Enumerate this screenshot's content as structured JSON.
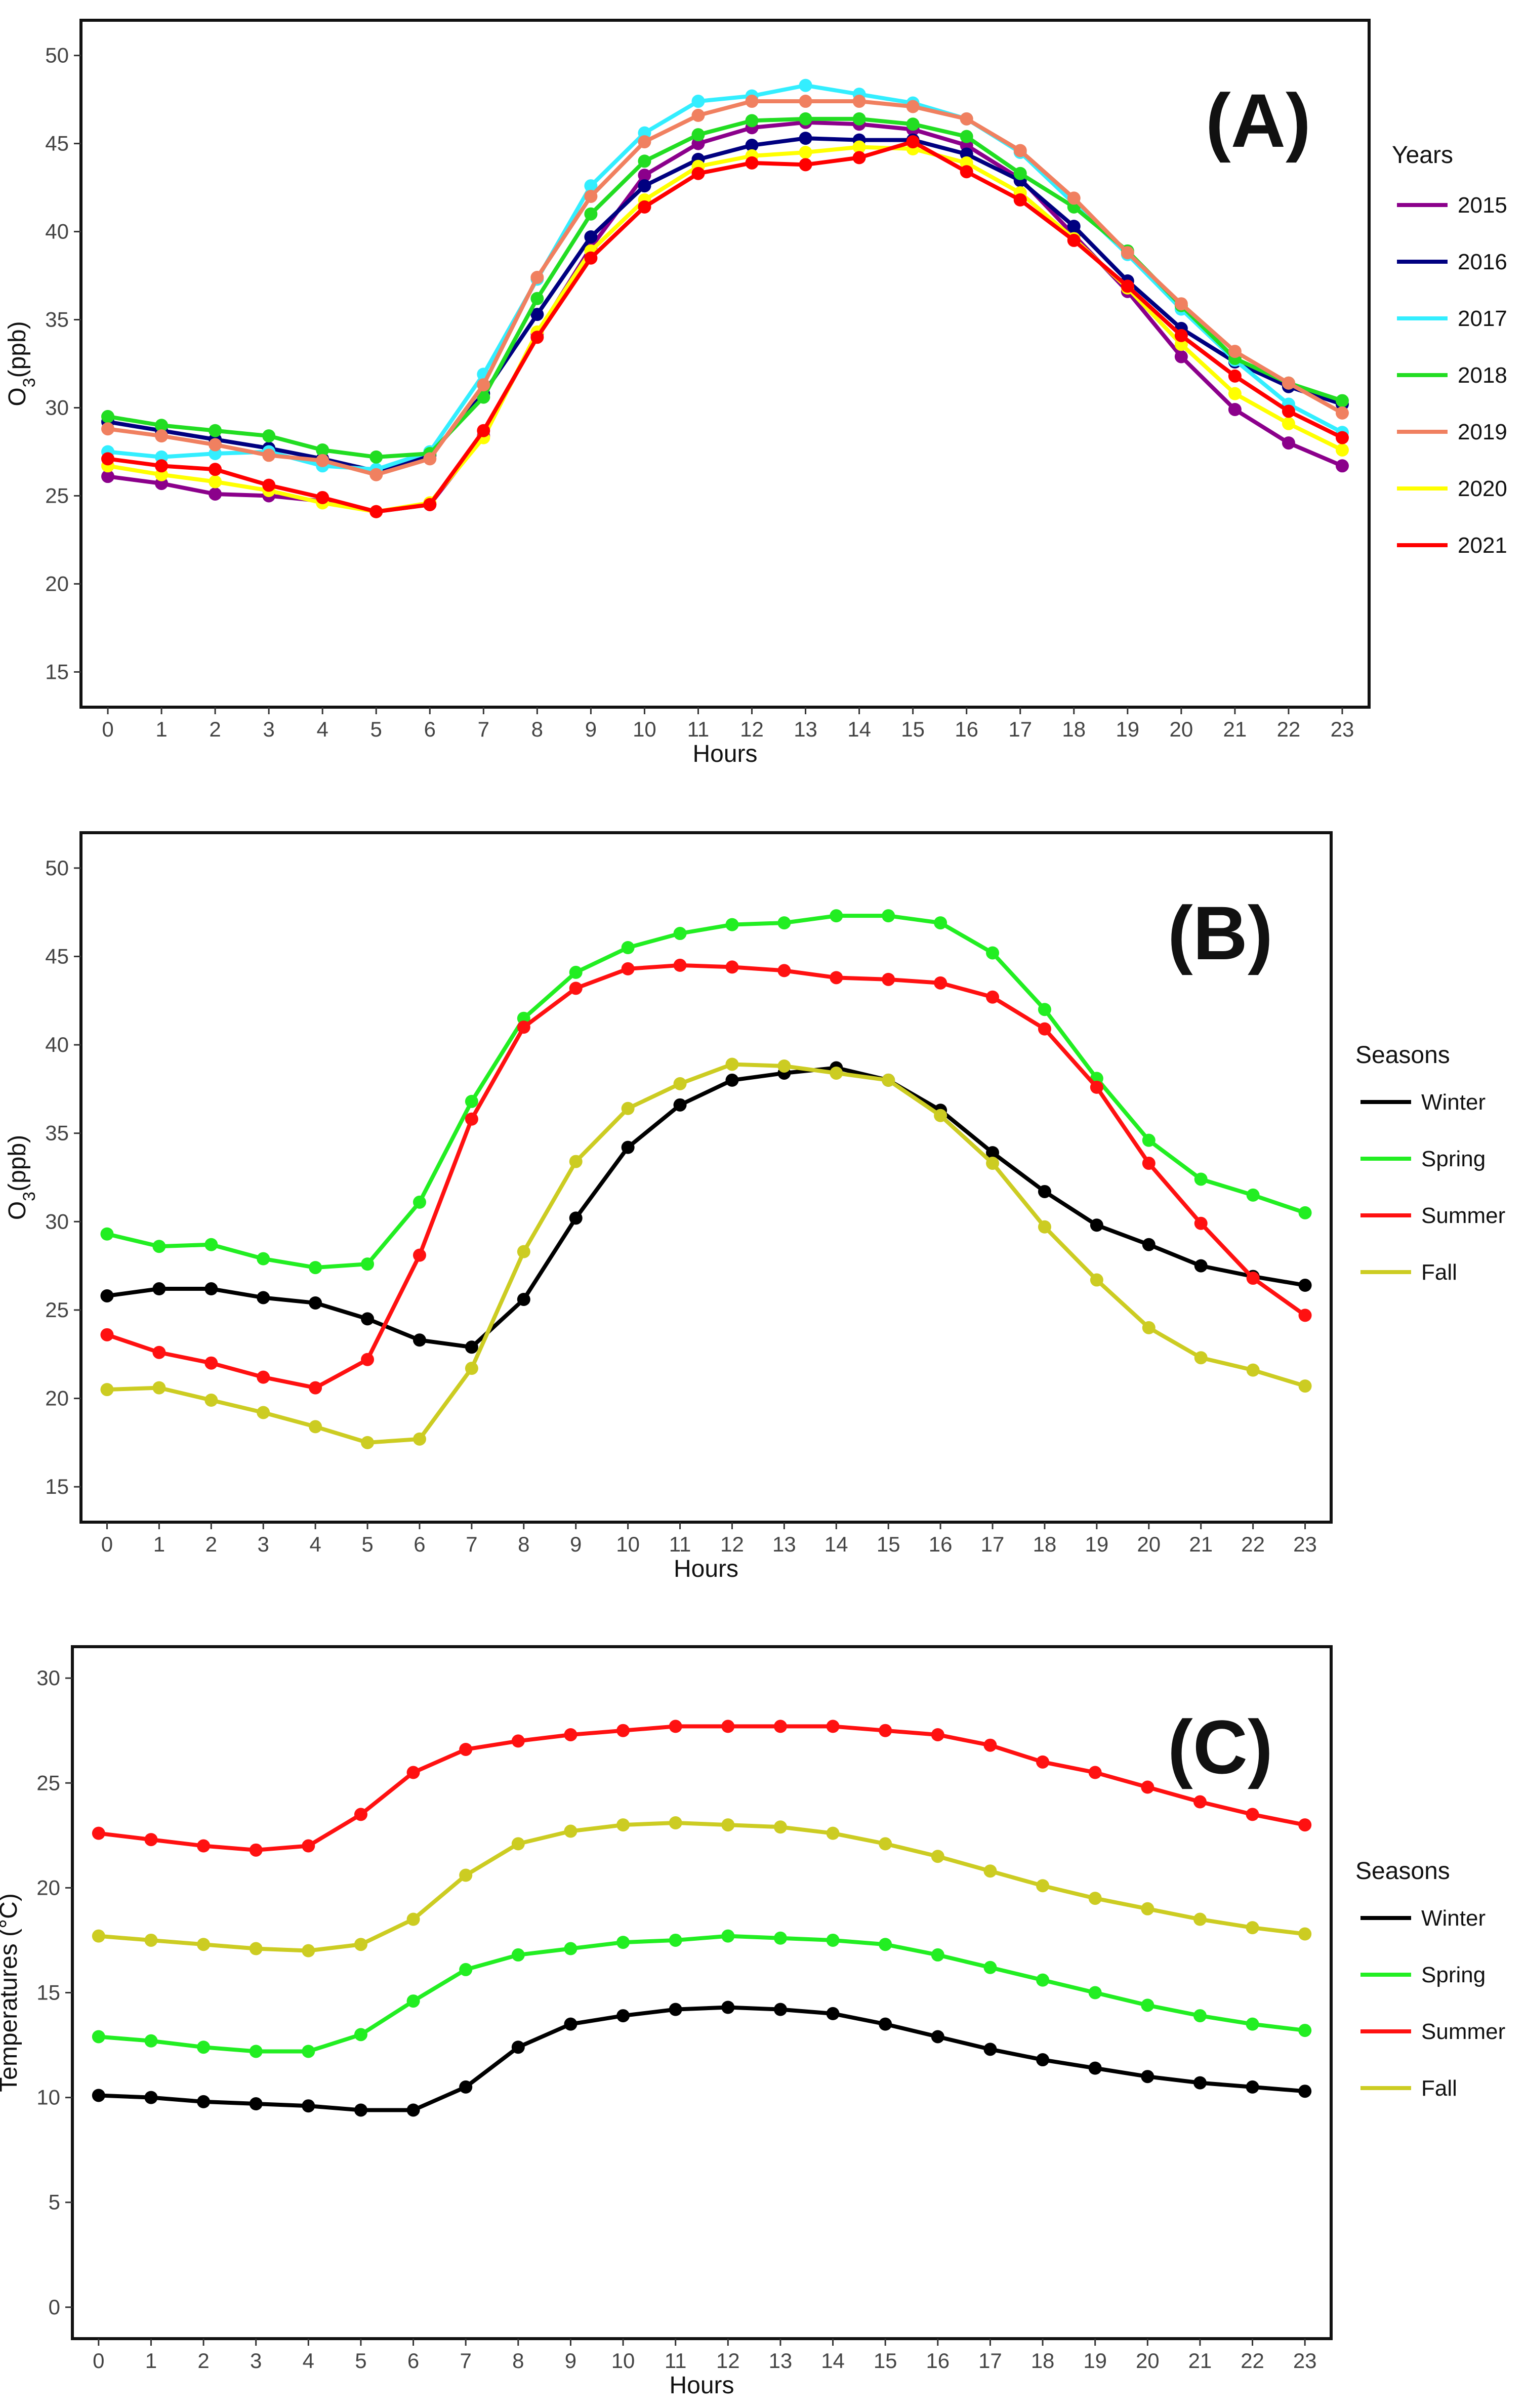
{
  "chart_data": [
    {
      "type": "line",
      "panel_label": "(A)",
      "xlabel": "Hours",
      "ylabel_main": "O",
      "ylabel_sub": "3",
      "ylabel_tail": "(ppb)",
      "xlim": [
        -0.5,
        23.5
      ],
      "ylim": [
        13,
        52
      ],
      "yticks": [
        15,
        20,
        25,
        30,
        35,
        40,
        45,
        50
      ],
      "x": [
        0,
        1,
        2,
        3,
        4,
        5,
        6,
        7,
        8,
        9,
        10,
        11,
        12,
        13,
        14,
        15,
        16,
        17,
        18,
        19,
        20,
        21,
        22,
        23
      ],
      "x_tick_labels": [
        "0",
        "1",
        "2",
        "3",
        "4",
        "5",
        "6",
        "7",
        "8",
        "9",
        "10",
        "11",
        "12",
        "13",
        "14",
        "15",
        "16",
        "17",
        "18",
        "19",
        "20",
        "21",
        "22",
        "23"
      ],
      "legend_title": "Years",
      "legend_position": "right",
      "series": [
        {
          "name": "2015",
          "color": "#8B008B",
          "values": [
            26.1,
            25.7,
            25.1,
            25.0,
            24.7,
            24.1,
            24.5,
            28.4,
            34.2,
            39.1,
            43.2,
            45.0,
            45.9,
            46.2,
            46.1,
            45.8,
            44.9,
            43.0,
            39.8,
            36.6,
            32.9,
            29.9,
            28.0,
            26.7
          ]
        },
        {
          "name": "2016",
          "color": "#000080",
          "values": [
            29.2,
            28.7,
            28.2,
            27.7,
            27.1,
            26.4,
            27.3,
            30.8,
            35.3,
            39.7,
            42.6,
            44.1,
            44.9,
            45.3,
            45.2,
            45.2,
            44.4,
            42.9,
            40.3,
            37.2,
            34.5,
            32.6,
            31.2,
            30.2
          ]
        },
        {
          "name": "2017",
          "color": "#33EEFF",
          "values": [
            27.5,
            27.2,
            27.4,
            27.5,
            26.7,
            26.5,
            27.5,
            31.9,
            37.3,
            42.6,
            45.6,
            47.4,
            47.7,
            48.3,
            47.8,
            47.3,
            46.4,
            44.5,
            41.6,
            38.7,
            35.6,
            32.7,
            30.2,
            28.6
          ]
        },
        {
          "name": "2018",
          "color": "#22DD22",
          "values": [
            29.5,
            29.0,
            28.7,
            28.4,
            27.6,
            27.2,
            27.4,
            30.6,
            36.2,
            41.0,
            44.0,
            45.5,
            46.3,
            46.4,
            46.4,
            46.1,
            45.4,
            43.3,
            41.4,
            38.9,
            35.8,
            32.8,
            31.4,
            30.4
          ]
        },
        {
          "name": "2019",
          "color": "#F08060",
          "values": [
            28.8,
            28.4,
            27.9,
            27.3,
            27.0,
            26.2,
            27.1,
            31.3,
            37.4,
            42.0,
            45.1,
            46.6,
            47.4,
            47.4,
            47.4,
            47.1,
            46.4,
            44.6,
            41.9,
            38.8,
            35.9,
            33.2,
            31.4,
            29.7
          ]
        },
        {
          "name": "2020",
          "color": "#FFFF00",
          "values": [
            26.7,
            26.2,
            25.8,
            25.3,
            24.6,
            24.1,
            24.6,
            28.3,
            34.3,
            38.9,
            41.8,
            43.7,
            44.3,
            44.5,
            44.8,
            44.7,
            43.9,
            42.2,
            39.6,
            36.8,
            33.6,
            30.8,
            29.1,
            27.6
          ]
        },
        {
          "name": "2021",
          "color": "#FF0000",
          "values": [
            27.1,
            26.7,
            26.5,
            25.6,
            24.9,
            24.1,
            24.5,
            28.7,
            34.0,
            38.5,
            41.4,
            43.3,
            43.9,
            43.8,
            44.2,
            45.1,
            43.4,
            41.8,
            39.5,
            36.9,
            34.1,
            31.8,
            29.8,
            28.3
          ]
        }
      ]
    },
    {
      "type": "line",
      "panel_label": "(B)",
      "xlabel": "Hours",
      "ylabel_main": "O",
      "ylabel_sub": "3",
      "ylabel_tail": "(ppb)",
      "xlim": [
        -0.5,
        23.5
      ],
      "ylim": [
        13,
        52
      ],
      "yticks": [
        15,
        20,
        25,
        30,
        35,
        40,
        45,
        50
      ],
      "x": [
        0,
        1,
        2,
        3,
        4,
        5,
        6,
        7,
        8,
        9,
        10,
        11,
        12,
        13,
        14,
        15,
        16,
        17,
        18,
        19,
        20,
        21,
        22,
        23
      ],
      "x_tick_labels": [
        "0",
        "1",
        "2",
        "3",
        "4",
        "5",
        "6",
        "7",
        "8",
        "9",
        "10",
        "11",
        "12",
        "13",
        "14",
        "15",
        "16",
        "17",
        "18",
        "19",
        "20",
        "21",
        "22",
        "23"
      ],
      "legend_title": "Seasons",
      "legend_position": "right",
      "series": [
        {
          "name": "Winter",
          "color": "#000000",
          "values": [
            25.8,
            26.2,
            26.2,
            25.7,
            25.4,
            24.5,
            23.3,
            22.9,
            25.6,
            30.2,
            34.2,
            36.6,
            38.0,
            38.4,
            38.7,
            38.0,
            36.3,
            33.9,
            31.7,
            29.8,
            28.7,
            27.5,
            26.9,
            26.4
          ]
        },
        {
          "name": "Spring",
          "color": "#22EE22",
          "values": [
            29.3,
            28.6,
            28.7,
            27.9,
            27.4,
            27.6,
            31.1,
            36.8,
            41.5,
            44.1,
            45.5,
            46.3,
            46.8,
            46.9,
            47.3,
            47.3,
            46.9,
            45.2,
            42.0,
            38.1,
            34.6,
            32.4,
            31.5,
            30.5
          ]
        },
        {
          "name": "Summer",
          "color": "#FF1111",
          "values": [
            23.6,
            22.6,
            22.0,
            21.2,
            20.6,
            22.2,
            28.1,
            35.8,
            41.0,
            43.2,
            44.3,
            44.5,
            44.4,
            44.2,
            43.8,
            43.7,
            43.5,
            42.7,
            40.9,
            37.6,
            33.3,
            29.9,
            26.8,
            24.7
          ]
        },
        {
          "name": "Fall",
          "color": "#CCCC22",
          "values": [
            20.5,
            20.6,
            19.9,
            19.2,
            18.4,
            17.5,
            17.7,
            21.7,
            28.3,
            33.4,
            36.4,
            37.8,
            38.9,
            38.8,
            38.4,
            38.0,
            36.0,
            33.3,
            29.7,
            26.7,
            24.0,
            22.3,
            21.6,
            20.7
          ]
        }
      ]
    },
    {
      "type": "line",
      "panel_label": "(C)",
      "xlabel": "Hours",
      "ylabel_main": "Temperatures (°C)",
      "ylabel_sub": "",
      "ylabel_tail": "",
      "xlim": [
        -0.5,
        23.5
      ],
      "ylim": [
        -1.5,
        31.5
      ],
      "yticks": [
        0,
        5,
        10,
        15,
        20,
        25,
        30
      ],
      "x": [
        0,
        1,
        2,
        3,
        4,
        5,
        6,
        7,
        8,
        9,
        10,
        11,
        12,
        13,
        14,
        15,
        16,
        17,
        18,
        19,
        20,
        21,
        22,
        23
      ],
      "x_tick_labels": [
        "0",
        "1",
        "2",
        "3",
        "4",
        "5",
        "6",
        "7",
        "8",
        "9",
        "10",
        "11",
        "12",
        "13",
        "14",
        "15",
        "16",
        "17",
        "18",
        "19",
        "20",
        "21",
        "22",
        "23"
      ],
      "legend_title": "Seasons",
      "legend_position": "right",
      "series": [
        {
          "name": "Winter",
          "color": "#000000",
          "values": [
            10.1,
            10.0,
            9.8,
            9.7,
            9.6,
            9.4,
            9.4,
            10.5,
            12.4,
            13.5,
            13.9,
            14.2,
            14.3,
            14.2,
            14.0,
            13.5,
            12.9,
            12.3,
            11.8,
            11.4,
            11.0,
            10.7,
            10.5,
            10.3
          ]
        },
        {
          "name": "Spring",
          "color": "#22EE22",
          "values": [
            12.9,
            12.7,
            12.4,
            12.2,
            12.2,
            13.0,
            14.6,
            16.1,
            16.8,
            17.1,
            17.4,
            17.5,
            17.7,
            17.6,
            17.5,
            17.3,
            16.8,
            16.2,
            15.6,
            15.0,
            14.4,
            13.9,
            13.5,
            13.2
          ]
        },
        {
          "name": "Summer",
          "color": "#FF1111",
          "values": [
            22.6,
            22.3,
            22.0,
            21.8,
            22.0,
            23.5,
            25.5,
            26.6,
            27.0,
            27.3,
            27.5,
            27.7,
            27.7,
            27.7,
            27.7,
            27.5,
            27.3,
            26.8,
            26.0,
            25.5,
            24.8,
            24.1,
            23.5,
            23.0
          ]
        },
        {
          "name": "Fall",
          "color": "#CCCC22",
          "values": [
            17.7,
            17.5,
            17.3,
            17.1,
            17.0,
            17.3,
            18.5,
            20.6,
            22.1,
            22.7,
            23.0,
            23.1,
            23.0,
            22.9,
            22.6,
            22.1,
            21.5,
            20.8,
            20.1,
            19.5,
            19.0,
            18.5,
            18.1,
            17.8
          ]
        }
      ]
    }
  ]
}
